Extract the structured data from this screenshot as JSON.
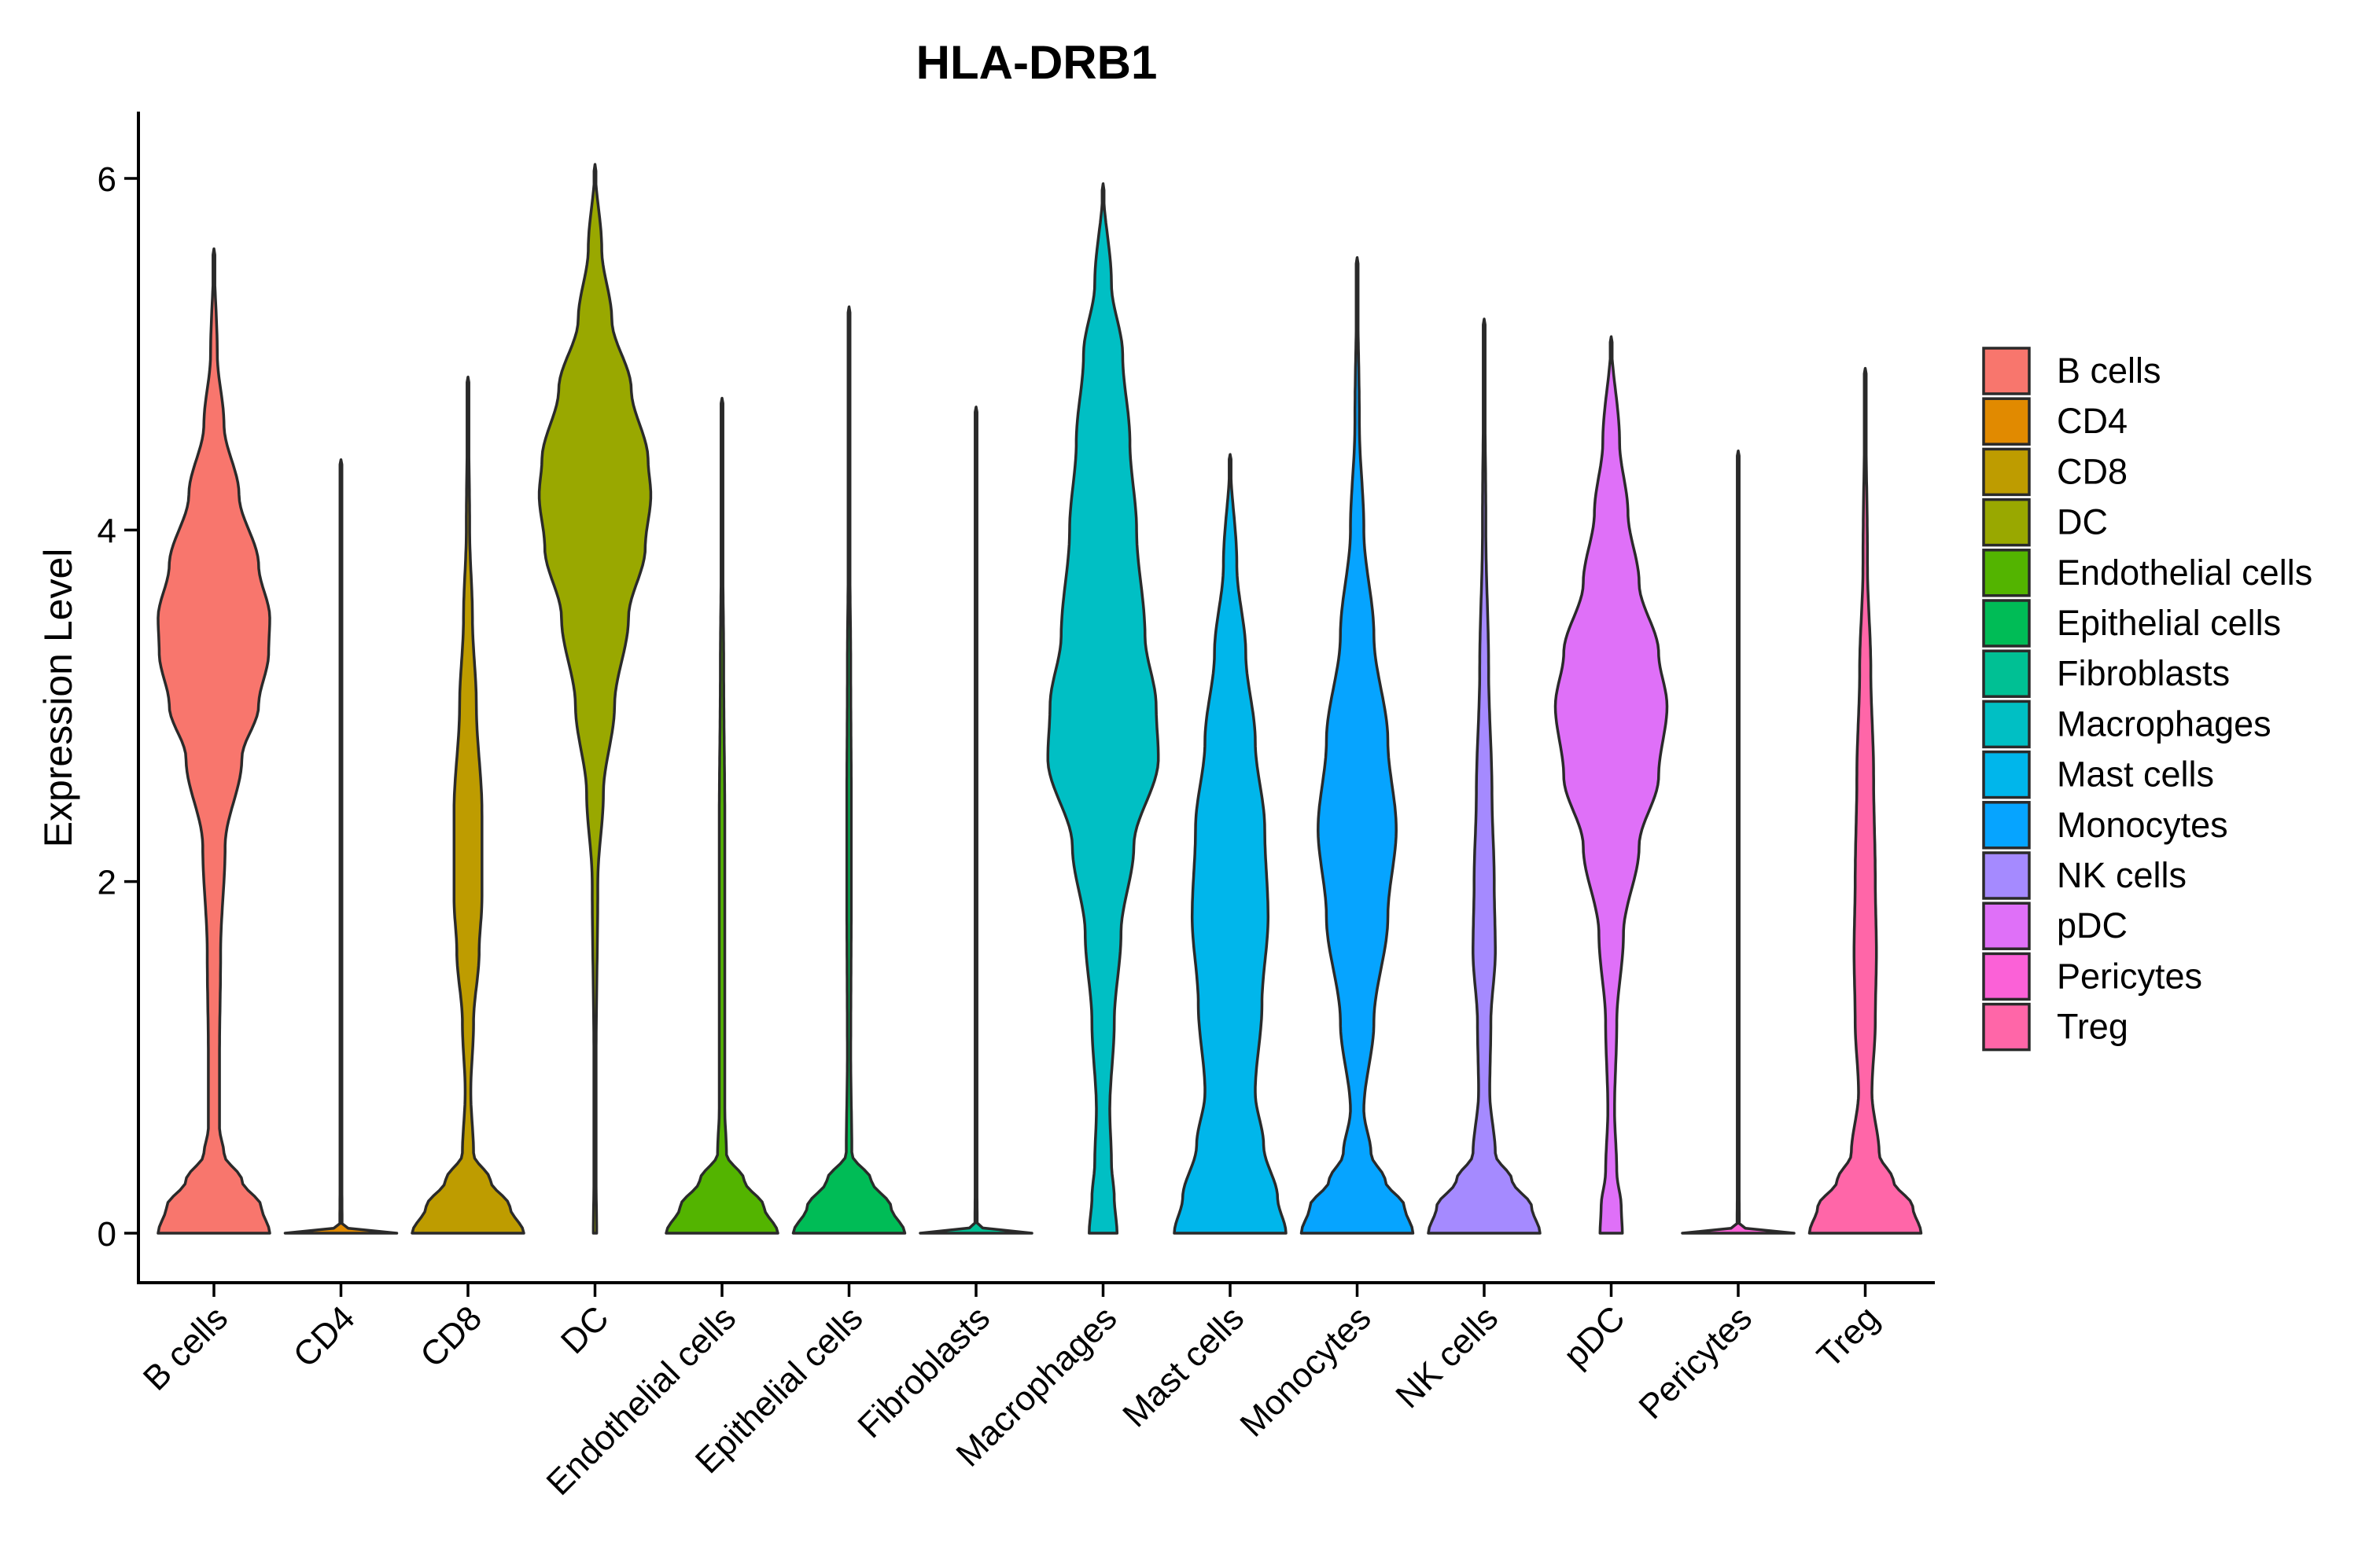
{
  "chart_data": {
    "type": "violin",
    "title": "HLA-DRB1",
    "xlabel": "",
    "ylabel": "Expression Level",
    "ylim": [
      -0.3,
      6.4
    ],
    "yticks": [
      0,
      2,
      4,
      6
    ],
    "ytick_labels": [
      "0",
      "2",
      "4",
      "6"
    ],
    "grid": false,
    "legend_position": "right",
    "categories": [
      "B cells",
      "CD4",
      "CD8",
      "DC",
      "Endothelial cells",
      "Epithelial cells",
      "Fibroblasts",
      "Macrophages",
      "Mast cells",
      "Monocytes",
      "NK cells",
      "pDC",
      "Pericytes",
      "Treg"
    ],
    "colors": [
      "#F8766D",
      "#E18A00",
      "#BE9C00",
      "#99A800",
      "#53B400",
      "#00BC56",
      "#00C094",
      "#00BFC4",
      "#00B6EB",
      "#06A4FF",
      "#A58AFF",
      "#DF70F8",
      "#FB61D7",
      "#FF66A8"
    ],
    "max_values": [
      5.6,
      4.4,
      4.87,
      6.08,
      4.75,
      5.27,
      4.7,
      5.97,
      4.43,
      5.55,
      5.2,
      5.1,
      4.45,
      4.92
    ],
    "violins": [
      {
        "name": "B cells",
        "profile": [
          [
            0,
            1.0
          ],
          [
            0.15,
            0.85
          ],
          [
            0.3,
            0.5
          ],
          [
            0.45,
            0.18
          ],
          [
            0.6,
            0.1
          ],
          [
            1.0,
            0.1
          ],
          [
            1.6,
            0.12
          ],
          [
            2.2,
            0.2
          ],
          [
            2.7,
            0.5
          ],
          [
            3.0,
            0.8
          ],
          [
            3.3,
            0.98
          ],
          [
            3.5,
            1.0
          ],
          [
            3.8,
            0.8
          ],
          [
            4.2,
            0.45
          ],
          [
            4.6,
            0.18
          ],
          [
            5.0,
            0.06
          ],
          [
            5.6,
            0.0
          ]
        ]
      },
      {
        "name": "CD4",
        "profile": [
          [
            0,
            1.0
          ],
          [
            0.02,
            0.15
          ],
          [
            0.05,
            0.02
          ],
          [
            0.5,
            0.01
          ],
          [
            4.4,
            0.0
          ]
        ]
      },
      {
        "name": "CD8",
        "profile": [
          [
            0,
            1.0
          ],
          [
            0.15,
            0.75
          ],
          [
            0.3,
            0.4
          ],
          [
            0.45,
            0.1
          ],
          [
            0.8,
            0.05
          ],
          [
            1.2,
            0.1
          ],
          [
            1.6,
            0.2
          ],
          [
            1.9,
            0.25
          ],
          [
            2.4,
            0.25
          ],
          [
            3.0,
            0.15
          ],
          [
            3.5,
            0.08
          ],
          [
            4.0,
            0.03
          ],
          [
            4.87,
            0.0
          ]
        ]
      },
      {
        "name": "DC",
        "profile": [
          [
            0,
            0.03
          ],
          [
            0.3,
            0.02
          ],
          [
            1.0,
            0.02
          ],
          [
            2.0,
            0.05
          ],
          [
            2.5,
            0.15
          ],
          [
            3.0,
            0.35
          ],
          [
            3.5,
            0.6
          ],
          [
            3.9,
            0.9
          ],
          [
            4.2,
            1.0
          ],
          [
            4.4,
            0.95
          ],
          [
            4.8,
            0.65
          ],
          [
            5.2,
            0.3
          ],
          [
            5.6,
            0.12
          ],
          [
            6.08,
            0.0
          ]
        ]
      },
      {
        "name": "Endothelial cells",
        "profile": [
          [
            0,
            1.0
          ],
          [
            0.15,
            0.75
          ],
          [
            0.3,
            0.4
          ],
          [
            0.45,
            0.08
          ],
          [
            0.7,
            0.05
          ],
          [
            1.5,
            0.05
          ],
          [
            2.3,
            0.05
          ],
          [
            3.2,
            0.03
          ],
          [
            4.0,
            0.01
          ],
          [
            4.75,
            0.0
          ]
        ]
      },
      {
        "name": "Epithelial cells",
        "profile": [
          [
            0,
            1.0
          ],
          [
            0.15,
            0.75
          ],
          [
            0.3,
            0.4
          ],
          [
            0.45,
            0.05
          ],
          [
            1.0,
            0.03
          ],
          [
            2.0,
            0.04
          ],
          [
            2.4,
            0.04
          ],
          [
            3.2,
            0.03
          ],
          [
            4.0,
            0.01
          ],
          [
            5.27,
            0.0
          ]
        ]
      },
      {
        "name": "Fibroblasts",
        "profile": [
          [
            0,
            1.0
          ],
          [
            0.02,
            0.15
          ],
          [
            0.05,
            0.02
          ],
          [
            0.5,
            0.01
          ],
          [
            4.7,
            0.0
          ]
        ]
      },
      {
        "name": "Macrophages",
        "profile": [
          [
            0,
            0.25
          ],
          [
            0.2,
            0.2
          ],
          [
            0.4,
            0.15
          ],
          [
            0.7,
            0.12
          ],
          [
            1.2,
            0.2
          ],
          [
            1.7,
            0.32
          ],
          [
            2.2,
            0.55
          ],
          [
            2.7,
            0.99
          ],
          [
            3.0,
            0.95
          ],
          [
            3.4,
            0.75
          ],
          [
            4.0,
            0.6
          ],
          [
            4.5,
            0.48
          ],
          [
            5.0,
            0.35
          ],
          [
            5.4,
            0.15
          ],
          [
            5.97,
            0.0
          ]
        ]
      },
      {
        "name": "Mast cells",
        "profile": [
          [
            0,
            1.0
          ],
          [
            0.2,
            0.85
          ],
          [
            0.5,
            0.6
          ],
          [
            0.8,
            0.45
          ],
          [
            1.3,
            0.57
          ],
          [
            1.8,
            0.68
          ],
          [
            2.3,
            0.62
          ],
          [
            2.8,
            0.45
          ],
          [
            3.3,
            0.28
          ],
          [
            3.8,
            0.12
          ],
          [
            4.43,
            0.0
          ]
        ]
      },
      {
        "name": "Monocytes",
        "profile": [
          [
            0,
            1.0
          ],
          [
            0.15,
            0.85
          ],
          [
            0.3,
            0.5
          ],
          [
            0.45,
            0.25
          ],
          [
            0.7,
            0.12
          ],
          [
            1.2,
            0.3
          ],
          [
            1.8,
            0.55
          ],
          [
            2.3,
            0.7
          ],
          [
            2.8,
            0.55
          ],
          [
            3.4,
            0.3
          ],
          [
            4.0,
            0.12
          ],
          [
            4.6,
            0.04
          ],
          [
            5.55,
            0.0
          ]
        ]
      },
      {
        "name": "NK cells",
        "profile": [
          [
            0,
            1.0
          ],
          [
            0.15,
            0.85
          ],
          [
            0.3,
            0.5
          ],
          [
            0.45,
            0.2
          ],
          [
            0.8,
            0.1
          ],
          [
            1.2,
            0.12
          ],
          [
            1.6,
            0.2
          ],
          [
            2.0,
            0.18
          ],
          [
            2.5,
            0.14
          ],
          [
            3.2,
            0.08
          ],
          [
            4.0,
            0.03
          ],
          [
            5.2,
            0.0
          ]
        ]
      },
      {
        "name": "pDC",
        "profile": [
          [
            0,
            0.2
          ],
          [
            0.15,
            0.18
          ],
          [
            0.35,
            0.1
          ],
          [
            0.7,
            0.06
          ],
          [
            1.2,
            0.1
          ],
          [
            1.7,
            0.22
          ],
          [
            2.2,
            0.5
          ],
          [
            2.6,
            0.85
          ],
          [
            3.0,
            1.0
          ],
          [
            3.3,
            0.85
          ],
          [
            3.7,
            0.5
          ],
          [
            4.1,
            0.3
          ],
          [
            4.5,
            0.15
          ],
          [
            5.1,
            0.0
          ]
        ]
      },
      {
        "name": "Pericytes",
        "profile": [
          [
            0,
            1.0
          ],
          [
            0.02,
            0.15
          ],
          [
            0.05,
            0.02
          ],
          [
            0.5,
            0.01
          ],
          [
            4.45,
            0.0
          ]
        ]
      },
      {
        "name": "Treg",
        "profile": [
          [
            0,
            1.0
          ],
          [
            0.15,
            0.85
          ],
          [
            0.3,
            0.5
          ],
          [
            0.45,
            0.25
          ],
          [
            0.8,
            0.12
          ],
          [
            1.2,
            0.18
          ],
          [
            1.6,
            0.2
          ],
          [
            2.0,
            0.18
          ],
          [
            2.6,
            0.15
          ],
          [
            3.2,
            0.1
          ],
          [
            3.8,
            0.04
          ],
          [
            4.92,
            0.0
          ]
        ]
      }
    ]
  }
}
